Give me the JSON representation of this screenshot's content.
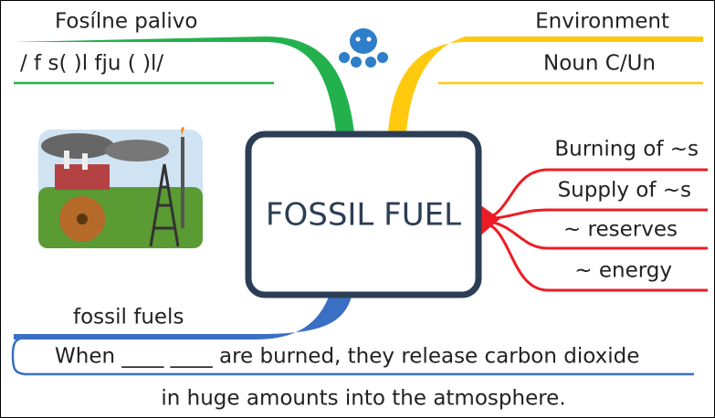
{
  "center": {
    "label": "FOSSIL FUEL"
  },
  "branches": {
    "green": {
      "lines": [
        "Fosílne palivo",
        "/ f s( )l fju ( )l/"
      ]
    },
    "yellow": {
      "lines": [
        "Environment",
        "Noun C/Un"
      ]
    },
    "red": {
      "lines": [
        "Burning of ~s",
        "Supply of ~s",
        "~ reserves",
        "~ energy"
      ]
    },
    "blue": {
      "heading": "fossil fuels",
      "lines": [
        "When ____ ____ are burned, they release carbon dioxide",
        "in huge amounts into the atmosphere."
      ]
    }
  }
}
